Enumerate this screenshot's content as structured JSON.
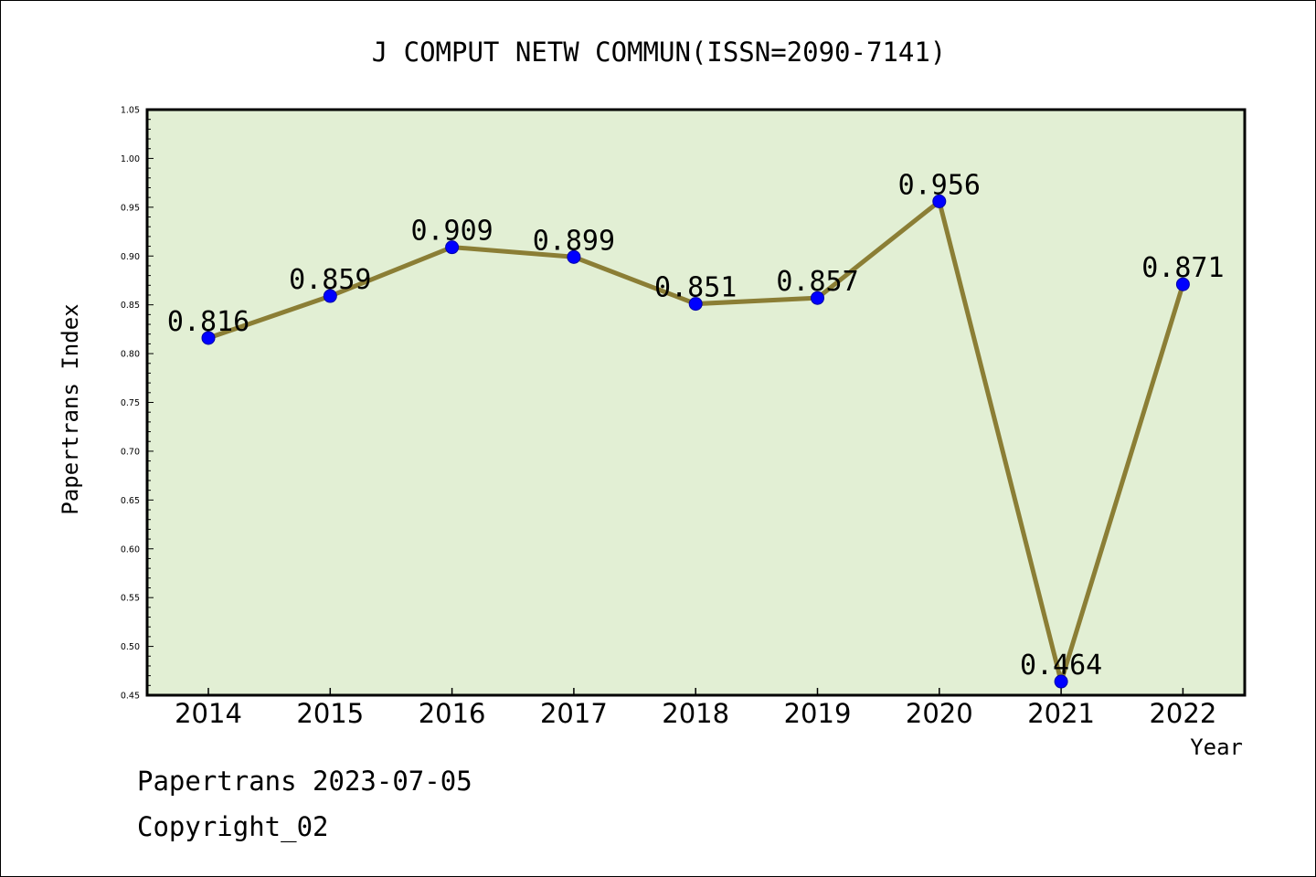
{
  "chart_data": {
    "type": "line",
    "title": "J COMPUT NETW COMMUN(ISSN=2090-7141)",
    "xlabel": "Year",
    "ylabel": "Papertrans Index",
    "categories": [
      "2014",
      "2015",
      "2016",
      "2017",
      "2018",
      "2019",
      "2020",
      "2021",
      "2022"
    ],
    "series": [
      {
        "values": [
          0.816,
          0.859,
          0.909,
          0.899,
          0.851,
          0.857,
          0.956,
          0.464,
          0.871
        ],
        "labels": [
          "0.816",
          "0.859",
          "0.909",
          "0.899",
          "0.851",
          "0.857",
          "0.956",
          "0.464",
          "0.871"
        ]
      }
    ],
    "ylim": [
      0.45,
      1.05
    ],
    "yticks": [
      "0.45",
      "0.50",
      "0.55",
      "0.60",
      "0.65",
      "0.70",
      "0.75",
      "0.80",
      "0.85",
      "0.90",
      "0.95",
      "1.00",
      "1.05"
    ],
    "grid": false,
    "colors": {
      "plot_background": "#e2efd4",
      "line": "#8b7e35",
      "marker_fill": "#0000ff",
      "marker_stroke": "#0000aa",
      "axes": "#000000"
    }
  },
  "footer": {
    "line1": "Papertrans 2023-07-05",
    "line2": "Copyright_02"
  }
}
